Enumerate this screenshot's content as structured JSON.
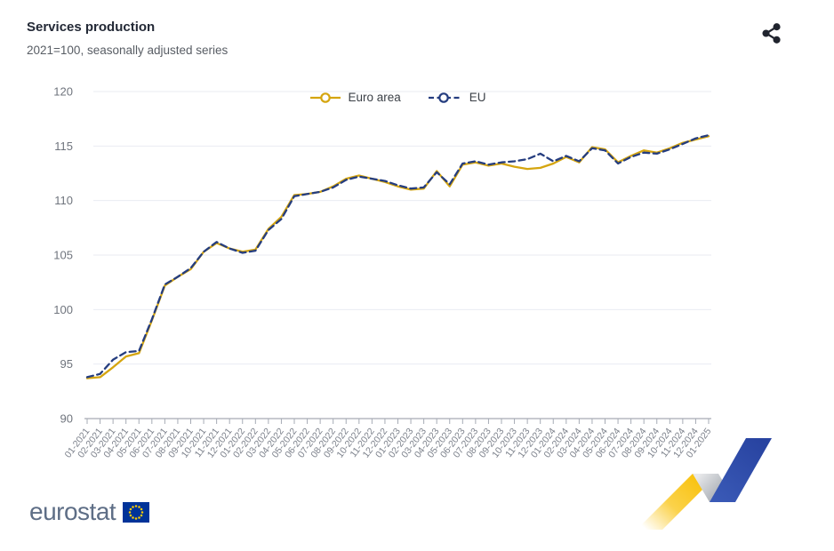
{
  "header": {
    "title": "Services production",
    "subtitle": "2021=100, seasonally adjusted series"
  },
  "chart_data": {
    "type": "line",
    "title": "Services production",
    "subtitle": "2021=100, seasonally adjusted series",
    "x": [
      "01-2021",
      "02-2021",
      "03-2021",
      "04-2021",
      "05-2021",
      "06-2021",
      "07-2021",
      "08-2021",
      "09-2021",
      "10-2021",
      "11-2021",
      "12-2021",
      "01-2022",
      "02-2022",
      "03-2022",
      "04-2022",
      "05-2022",
      "06-2022",
      "07-2022",
      "08-2022",
      "09-2022",
      "10-2022",
      "11-2022",
      "12-2022",
      "01-2023",
      "02-2023",
      "03-2023",
      "04-2023",
      "05-2023",
      "06-2023",
      "07-2023",
      "08-2023",
      "09-2023",
      "10-2023",
      "11-2023",
      "12-2023",
      "01-2024",
      "02-2024",
      "03-2024",
      "04-2024",
      "05-2024",
      "06-2024",
      "07-2024",
      "08-2024",
      "09-2024",
      "10-2024",
      "11-2024",
      "12-2024",
      "01-2025"
    ],
    "series": [
      {
        "name": "Euro area",
        "color": "#D5A50F",
        "style": "solid",
        "values": [
          93.7,
          93.8,
          94.7,
          95.7,
          96.0,
          99.0,
          102.2,
          103.0,
          103.7,
          105.3,
          106.1,
          105.6,
          105.3,
          105.5,
          107.4,
          108.5,
          110.5,
          110.6,
          110.8,
          111.3,
          112.0,
          112.3,
          112.0,
          111.7,
          111.3,
          111.0,
          111.1,
          112.7,
          111.3,
          113.3,
          113.5,
          113.2,
          113.4,
          113.1,
          112.9,
          113.0,
          113.4,
          114.0,
          113.5,
          114.9,
          114.7,
          113.5,
          114.1,
          114.6,
          114.4,
          114.8,
          115.3,
          115.6,
          115.9
        ]
      },
      {
        "name": "EU",
        "color": "#253D7F",
        "style": "dashed",
        "values": [
          93.8,
          94.1,
          95.4,
          96.1,
          96.2,
          99.1,
          102.3,
          103.0,
          103.8,
          105.3,
          106.2,
          105.6,
          105.2,
          105.4,
          107.3,
          108.3,
          110.4,
          110.6,
          110.8,
          111.2,
          111.9,
          112.2,
          112.0,
          111.8,
          111.4,
          111.1,
          111.2,
          112.6,
          111.5,
          113.4,
          113.6,
          113.3,
          113.5,
          113.6,
          113.8,
          114.3,
          113.6,
          114.1,
          113.6,
          114.8,
          114.6,
          113.4,
          114.0,
          114.4,
          114.3,
          114.7,
          115.2,
          115.7,
          116.0
        ]
      }
    ],
    "ylim": [
      90,
      120
    ],
    "yticks": [
      90,
      95,
      100,
      105,
      110,
      115,
      120
    ],
    "grid": "horizontal",
    "legend_position": "top-center"
  },
  "legend": {
    "items": [
      {
        "label": "Euro area",
        "color": "#D5A50F",
        "style": "solid"
      },
      {
        "label": "EU",
        "color": "#253D7F",
        "style": "dashed"
      }
    ]
  },
  "footer": {
    "logo_text": "eurostat"
  },
  "icons": {
    "share": "share-icon",
    "flag": "eu-flag"
  },
  "colors": {
    "euro_area_line": "#D5A50F",
    "eu_line": "#253D7F",
    "gridline": "#E9EBF2",
    "axis_line": "#A6ABB5",
    "axis_text": "#73788;2",
    "y_tick_text": "#6F747D",
    "x_tick_text": "#7D828C",
    "title_text": "#232936",
    "subtitle_text": "#585D64",
    "share_icon": "#20242E",
    "logo_text": "#5E6E86",
    "flag_blue": "#003399",
    "star_yellow": "#FFCC00",
    "ribbon_yellow": "#F8C008",
    "ribbon_gray": "#9099A2",
    "ribbon_blue": "#2B4AA5"
  }
}
